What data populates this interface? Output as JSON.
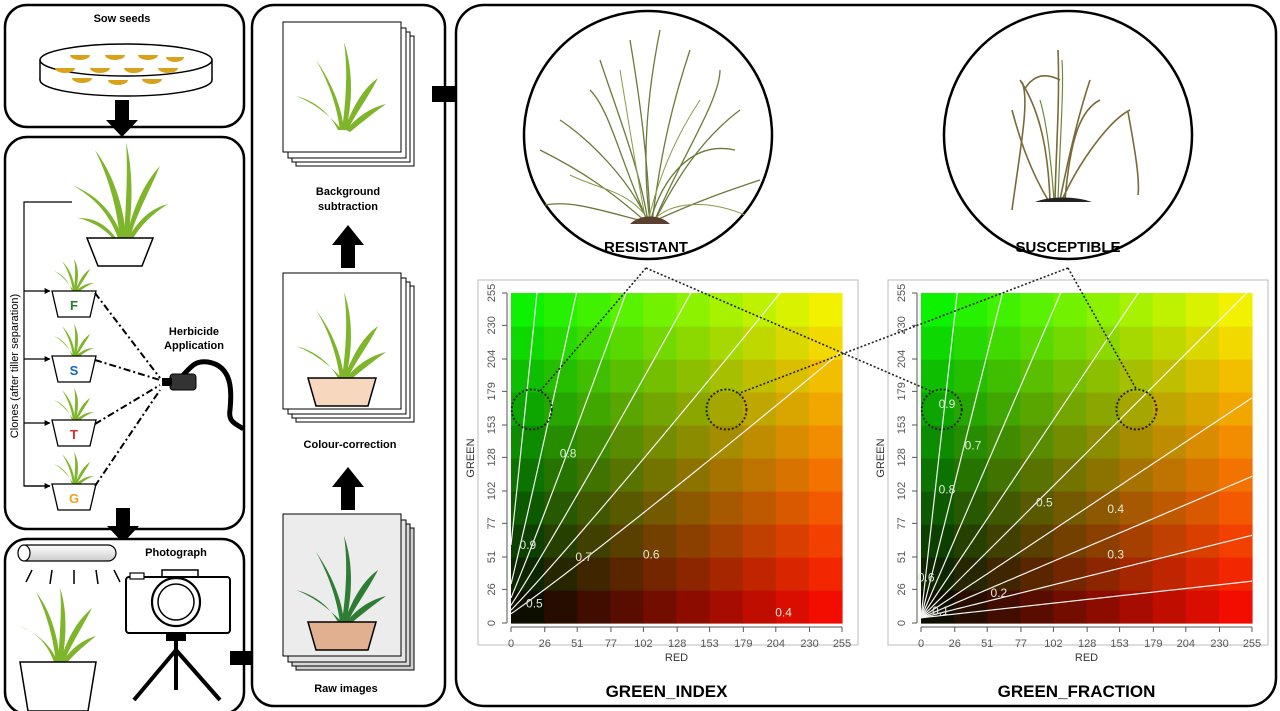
{
  "steps": {
    "sow": "Sow seeds",
    "clones_axis": "Clones (after tiller separation)",
    "herbicide": [
      "Herbicide",
      "Application"
    ],
    "clone_letters": [
      {
        "letter": "F",
        "color": "#2e7d32"
      },
      {
        "letter": "S",
        "color": "#1565c0"
      },
      {
        "letter": "T",
        "color": "#d32f2f"
      },
      {
        "letter": "G",
        "color": "#f0a020"
      }
    ],
    "photograph": "Photograph",
    "raw_images": "Raw images",
    "colour_correction": "Colour-correction",
    "background_subtraction": [
      "Background",
      "subtraction"
    ]
  },
  "outcomes": {
    "resistant": "RESISTANT",
    "susceptible": "SUSCEPTIBLE"
  },
  "chart_data": [
    {
      "type": "heatmap",
      "title": "GREEN_INDEX",
      "xlabel": "RED",
      "ylabel": "GREEN",
      "xticks": [
        0,
        26,
        51,
        77,
        102,
        128,
        153,
        179,
        204,
        230,
        255
      ],
      "yticks": [
        0,
        26,
        51,
        77,
        102,
        128,
        153,
        179,
        204,
        230,
        255
      ],
      "xlim": [
        0,
        255
      ],
      "ylim": [
        0,
        255
      ],
      "contour_labels": [
        "0.9",
        "0.8",
        "0.7",
        "0.6",
        "0.5",
        "0.4"
      ],
      "highlight_circles": [
        {
          "red": 16,
          "green": 165
        },
        {
          "red": 166,
          "green": 165
        }
      ]
    },
    {
      "type": "heatmap",
      "title": "GREEN_FRACTION",
      "xlabel": "RED",
      "ylabel": "GREEN",
      "xticks": [
        0,
        26,
        51,
        77,
        102,
        128,
        153,
        179,
        204,
        230,
        255
      ],
      "yticks": [
        0,
        26,
        51,
        77,
        102,
        128,
        153,
        179,
        204,
        230,
        255
      ],
      "xlim": [
        0,
        255
      ],
      "ylim": [
        0,
        255
      ],
      "contour_labels": [
        "0.9",
        "0.8",
        "0.7",
        "0.6",
        "0.5",
        "0.4",
        "0.3",
        "0.2",
        "0.1"
      ],
      "highlight_circles": [
        {
          "red": 16,
          "green": 165
        },
        {
          "red": 166,
          "green": 165
        }
      ]
    }
  ]
}
